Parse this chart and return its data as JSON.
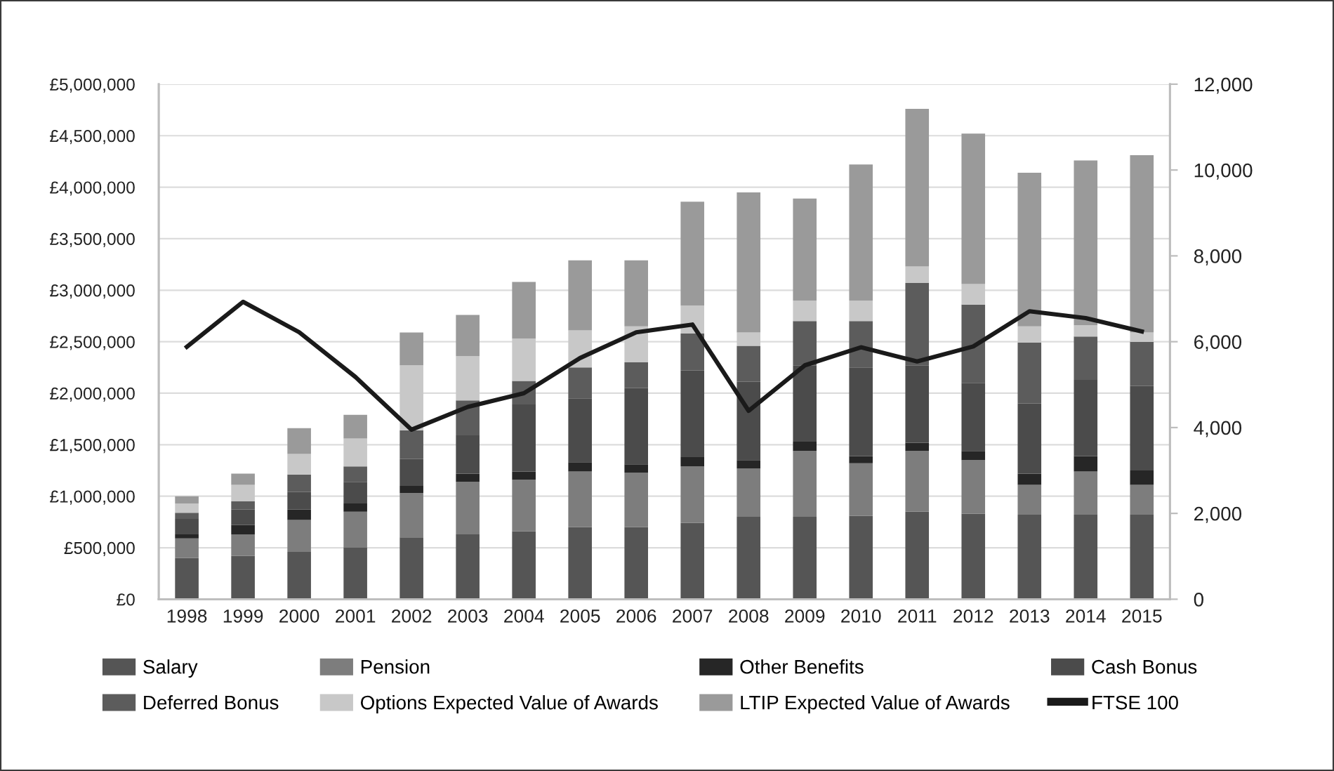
{
  "chart_data": {
    "type": "bar",
    "stacked": true,
    "categories": [
      "1998",
      "1999",
      "2000",
      "2001",
      "2002",
      "2003",
      "2004",
      "2005",
      "2006",
      "2007",
      "2008",
      "2009",
      "2010",
      "2011",
      "2012",
      "2013",
      "2014",
      "2015"
    ],
    "series": [
      {
        "name": "Salary",
        "color": "#555555",
        "values": [
          400000,
          420000,
          460000,
          500000,
          600000,
          630000,
          660000,
          700000,
          700000,
          740000,
          800000,
          800000,
          810000,
          850000,
          830000,
          820000,
          820000,
          820000
        ]
      },
      {
        "name": "Pension",
        "color": "#7d7d7d",
        "values": [
          190000,
          210000,
          310000,
          350000,
          430000,
          510000,
          500000,
          540000,
          530000,
          550000,
          470000,
          640000,
          510000,
          590000,
          520000,
          290000,
          420000,
          290000
        ]
      },
      {
        "name": "Other Benefits",
        "color": "#262626",
        "values": [
          40000,
          90000,
          100000,
          80000,
          70000,
          80000,
          80000,
          90000,
          80000,
          90000,
          80000,
          90000,
          70000,
          80000,
          90000,
          110000,
          150000,
          140000
        ]
      },
      {
        "name": "Cash Bonus",
        "color": "#4b4b4b",
        "values": [
          150000,
          150000,
          170000,
          210000,
          260000,
          370000,
          650000,
          620000,
          740000,
          840000,
          760000,
          740000,
          860000,
          750000,
          660000,
          680000,
          740000,
          820000
        ]
      },
      {
        "name": "Deferred Bonus",
        "color": "#5c5c5c",
        "values": [
          60000,
          80000,
          170000,
          150000,
          280000,
          340000,
          230000,
          300000,
          250000,
          360000,
          350000,
          430000,
          450000,
          800000,
          760000,
          590000,
          420000,
          430000
        ]
      },
      {
        "name": "Options Expected Value of Awards",
        "color": "#c8c8c8",
        "values": [
          90000,
          160000,
          200000,
          270000,
          630000,
          430000,
          410000,
          360000,
          350000,
          270000,
          130000,
          200000,
          200000,
          160000,
          200000,
          160000,
          110000,
          90000
        ]
      },
      {
        "name": "LTIP Expected Value of Awards",
        "color": "#9a9a9a",
        "values": [
          70000,
          110000,
          250000,
          230000,
          320000,
          400000,
          550000,
          680000,
          640000,
          1010000,
          1360000,
          990000,
          1320000,
          1530000,
          1460000,
          1490000,
          1600000,
          1720000
        ]
      },
      {
        "name": "FTSE 100",
        "type": "line",
        "axis": "y2",
        "color": "#1a1a1a",
        "values": [
          5880,
          6930,
          6220,
          5180,
          3950,
          4480,
          4800,
          5620,
          6220,
          6400,
          4390,
          5450,
          5870,
          5540,
          5890,
          6710,
          6550,
          6240
        ]
      }
    ],
    "ylim": [
      0,
      5000000
    ],
    "yticks": [
      {
        "value": 0,
        "label": "£0"
      },
      {
        "value": 500000,
        "label": "£500,000"
      },
      {
        "value": 1000000,
        "label": "£1,000,000"
      },
      {
        "value": 1500000,
        "label": "£1,500,000"
      },
      {
        "value": 2000000,
        "label": "£2,000,000"
      },
      {
        "value": 2500000,
        "label": "£2,500,000"
      },
      {
        "value": 3000000,
        "label": "£3,000,000"
      },
      {
        "value": 3500000,
        "label": "£3,500,000"
      },
      {
        "value": 4000000,
        "label": "£4,000,000"
      },
      {
        "value": 4500000,
        "label": "£4,500,000"
      },
      {
        "value": 5000000,
        "label": "£5,000,000"
      }
    ],
    "y2lim": [
      0,
      12000
    ],
    "y2ticks": [
      0,
      {
        "value": 2000,
        "label": "2,000"
      },
      {
        "value": 4000,
        "label": "4,000"
      },
      {
        "value": 6000,
        "label": "6,000"
      },
      {
        "value": 8000,
        "label": "8,000"
      },
      {
        "value": 10000,
        "label": "10,000"
      },
      {
        "value": 12000,
        "label": "12,000"
      }
    ],
    "grid": "y",
    "legend": "bottom",
    "line_style": "solid",
    "marker": "none"
  }
}
